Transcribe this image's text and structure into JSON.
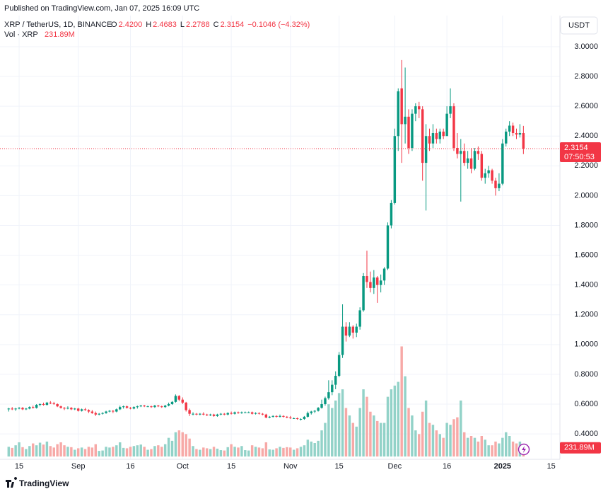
{
  "header": {
    "published": "Published on TradingView.com, Jan 07, 2025 16:09 UTC",
    "symbol": "XRP / TetherUS, 1D, BINANCE",
    "ohlc": [
      {
        "key": "O",
        "value": "2.4200"
      },
      {
        "key": "H",
        "value": "2.4683"
      },
      {
        "key": "L",
        "value": "2.2788"
      },
      {
        "key": "C",
        "value": "2.3154"
      }
    ],
    "change": "−0.1046 (−4.32%)",
    "volume_name": "Vol · XRP",
    "volume_value": "231.89M"
  },
  "currency": "USDT",
  "countdown": "07:50:53",
  "footer": "TradingView",
  "chart_data": {
    "type": "candlestick",
    "up_color": "#089981",
    "down_color": "#f23645",
    "volume_up_color": "#92d2c8",
    "volume_down_color": "#f7a9a7",
    "grid": true,
    "xlim": [
      -2.5,
      158.5
    ],
    "ylim": [
      0.234,
      3.209
    ],
    "volume_ylim": [
      0,
      3300
    ],
    "xticks": [
      {
        "value": 3,
        "label": "15"
      },
      {
        "value": 20,
        "label": "Sep"
      },
      {
        "value": 35,
        "label": "16"
      },
      {
        "value": 50,
        "label": "Oct"
      },
      {
        "value": 64,
        "label": "15"
      },
      {
        "value": 81,
        "label": "Nov"
      },
      {
        "value": 95,
        "label": "15"
      },
      {
        "value": 111,
        "label": "Dec"
      },
      {
        "value": 126,
        "label": "16"
      },
      {
        "value": 142,
        "label": "2025"
      },
      {
        "value": 156,
        "label": "15"
      }
    ],
    "yticks": [
      {
        "value": 0.4,
        "label": "0.4000"
      },
      {
        "value": 0.6,
        "label": "0.6000"
      },
      {
        "value": 0.8,
        "label": "0.8000"
      },
      {
        "value": 1.0,
        "label": "1.0000"
      },
      {
        "value": 1.2,
        "label": "1.2000"
      },
      {
        "value": 1.4,
        "label": "1.4000"
      },
      {
        "value": 1.6,
        "label": "1.6000"
      },
      {
        "value": 1.8,
        "label": "1.8000"
      },
      {
        "value": 2.0,
        "label": "2.0000"
      },
      {
        "value": 2.2,
        "label": "2.2000"
      },
      {
        "value": 2.4,
        "label": "2.4000"
      },
      {
        "value": 2.6,
        "label": "2.6000"
      },
      {
        "value": 2.8,
        "label": "2.8000"
      },
      {
        "value": 3.0,
        "label": "3.0000"
      }
    ],
    "candles": [
      [
        0.565,
        0.575,
        0.55,
        0.57,
        260
      ],
      [
        0.57,
        0.58,
        0.56,
        0.565,
        230
      ],
      [
        0.565,
        0.575,
        0.555,
        0.57,
        300
      ],
      [
        0.57,
        0.58,
        0.565,
        0.575,
        380
      ],
      [
        0.575,
        0.58,
        0.56,
        0.565,
        250
      ],
      [
        0.565,
        0.575,
        0.56,
        0.57,
        200
      ],
      [
        0.57,
        0.585,
        0.565,
        0.58,
        280
      ],
      [
        0.58,
        0.59,
        0.57,
        0.575,
        350
      ],
      [
        0.575,
        0.6,
        0.57,
        0.595,
        300
      ],
      [
        0.595,
        0.605,
        0.585,
        0.6,
        370
      ],
      [
        0.6,
        0.61,
        0.59,
        0.595,
        320
      ],
      [
        0.595,
        0.615,
        0.59,
        0.61,
        400
      ],
      [
        0.61,
        0.62,
        0.6,
        0.605,
        280
      ],
      [
        0.605,
        0.615,
        0.595,
        0.6,
        240
      ],
      [
        0.6,
        0.605,
        0.58,
        0.585,
        330
      ],
      [
        0.585,
        0.59,
        0.57,
        0.575,
        380
      ],
      [
        0.575,
        0.58,
        0.56,
        0.57,
        300
      ],
      [
        0.57,
        0.585,
        0.565,
        0.575,
        260
      ],
      [
        0.575,
        0.58,
        0.56,
        0.565,
        250
      ],
      [
        0.565,
        0.575,
        0.56,
        0.57,
        180
      ],
      [
        0.57,
        0.575,
        0.55,
        0.555,
        220
      ],
      [
        0.555,
        0.57,
        0.55,
        0.565,
        240
      ],
      [
        0.565,
        0.575,
        0.555,
        0.56,
        200
      ],
      [
        0.56,
        0.565,
        0.54,
        0.55,
        260
      ],
      [
        0.55,
        0.56,
        0.535,
        0.54,
        240
      ],
      [
        0.54,
        0.55,
        0.52,
        0.53,
        330
      ],
      [
        0.53,
        0.54,
        0.525,
        0.535,
        150
      ],
      [
        0.535,
        0.545,
        0.53,
        0.54,
        160
      ],
      [
        0.54,
        0.555,
        0.535,
        0.55,
        260
      ],
      [
        0.55,
        0.56,
        0.545,
        0.555,
        240
      ],
      [
        0.555,
        0.56,
        0.54,
        0.55,
        260
      ],
      [
        0.55,
        0.57,
        0.545,
        0.565,
        300
      ],
      [
        0.565,
        0.59,
        0.56,
        0.58,
        380
      ],
      [
        0.58,
        0.59,
        0.57,
        0.585,
        230
      ],
      [
        0.585,
        0.59,
        0.57,
        0.575,
        220
      ],
      [
        0.575,
        0.58,
        0.565,
        0.57,
        260
      ],
      [
        0.57,
        0.585,
        0.565,
        0.58,
        280
      ],
      [
        0.58,
        0.59,
        0.57,
        0.585,
        300
      ],
      [
        0.585,
        0.595,
        0.58,
        0.59,
        320
      ],
      [
        0.59,
        0.595,
        0.58,
        0.585,
        260
      ],
      [
        0.585,
        0.59,
        0.58,
        0.585,
        180
      ],
      [
        0.585,
        0.59,
        0.575,
        0.58,
        200
      ],
      [
        0.58,
        0.595,
        0.575,
        0.59,
        280
      ],
      [
        0.59,
        0.595,
        0.58,
        0.585,
        300
      ],
      [
        0.585,
        0.59,
        0.575,
        0.58,
        260
      ],
      [
        0.58,
        0.595,
        0.575,
        0.59,
        330
      ],
      [
        0.59,
        0.61,
        0.585,
        0.6,
        500
      ],
      [
        0.6,
        0.62,
        0.595,
        0.615,
        420
      ],
      [
        0.615,
        0.665,
        0.61,
        0.655,
        650
      ],
      [
        0.655,
        0.66,
        0.62,
        0.63,
        700
      ],
      [
        0.63,
        0.645,
        0.6,
        0.61,
        650
      ],
      [
        0.61,
        0.615,
        0.55,
        0.56,
        600
      ],
      [
        0.56,
        0.57,
        0.52,
        0.535,
        480
      ],
      [
        0.535,
        0.545,
        0.525,
        0.535,
        280
      ],
      [
        0.535,
        0.54,
        0.525,
        0.53,
        200
      ],
      [
        0.53,
        0.54,
        0.525,
        0.535,
        180
      ],
      [
        0.535,
        0.545,
        0.525,
        0.53,
        240
      ],
      [
        0.53,
        0.535,
        0.52,
        0.525,
        220
      ],
      [
        0.525,
        0.535,
        0.52,
        0.53,
        200
      ],
      [
        0.53,
        0.535,
        0.515,
        0.52,
        260
      ],
      [
        0.52,
        0.535,
        0.515,
        0.53,
        210
      ],
      [
        0.53,
        0.54,
        0.525,
        0.535,
        170
      ],
      [
        0.535,
        0.54,
        0.525,
        0.53,
        160
      ],
      [
        0.53,
        0.545,
        0.525,
        0.54,
        250
      ],
      [
        0.54,
        0.55,
        0.53,
        0.535,
        330
      ],
      [
        0.535,
        0.55,
        0.53,
        0.545,
        260
      ],
      [
        0.545,
        0.55,
        0.535,
        0.54,
        240
      ],
      [
        0.54,
        0.55,
        0.535,
        0.545,
        280
      ],
      [
        0.545,
        0.55,
        0.54,
        0.545,
        170
      ],
      [
        0.545,
        0.55,
        0.54,
        0.545,
        160
      ],
      [
        0.545,
        0.55,
        0.53,
        0.535,
        300
      ],
      [
        0.535,
        0.545,
        0.53,
        0.54,
        260
      ],
      [
        0.54,
        0.545,
        0.53,
        0.535,
        240
      ],
      [
        0.535,
        0.54,
        0.525,
        0.53,
        220
      ],
      [
        0.53,
        0.535,
        0.505,
        0.51,
        380
      ],
      [
        0.51,
        0.52,
        0.505,
        0.515,
        190
      ],
      [
        0.515,
        0.525,
        0.51,
        0.52,
        180
      ],
      [
        0.52,
        0.525,
        0.51,
        0.515,
        220
      ],
      [
        0.515,
        0.53,
        0.51,
        0.52,
        260
      ],
      [
        0.52,
        0.525,
        0.51,
        0.515,
        230
      ],
      [
        0.515,
        0.52,
        0.505,
        0.51,
        250
      ],
      [
        0.51,
        0.52,
        0.5,
        0.505,
        240
      ],
      [
        0.505,
        0.51,
        0.5,
        0.505,
        180
      ],
      [
        0.505,
        0.51,
        0.495,
        0.5,
        220
      ],
      [
        0.5,
        0.505,
        0.49,
        0.5,
        260
      ],
      [
        0.5,
        0.52,
        0.495,
        0.515,
        300
      ],
      [
        0.515,
        0.55,
        0.51,
        0.54,
        450
      ],
      [
        0.54,
        0.555,
        0.53,
        0.55,
        400
      ],
      [
        0.55,
        0.56,
        0.54,
        0.555,
        360
      ],
      [
        0.555,
        0.58,
        0.55,
        0.575,
        420
      ],
      [
        0.575,
        0.63,
        0.57,
        0.6,
        700
      ],
      [
        0.6,
        0.65,
        0.59,
        0.64,
        900
      ],
      [
        0.64,
        0.76,
        0.63,
        0.68,
        1400
      ],
      [
        0.68,
        0.76,
        0.66,
        0.73,
        1300
      ],
      [
        0.73,
        0.82,
        0.7,
        0.79,
        1500
      ],
      [
        0.79,
        0.95,
        0.78,
        0.93,
        1700
      ],
      [
        0.93,
        1.27,
        0.91,
        1.12,
        1800
      ],
      [
        1.12,
        1.15,
        1.02,
        1.06,
        1300
      ],
      [
        1.06,
        1.15,
        1.05,
        1.12,
        1100
      ],
      [
        1.12,
        1.13,
        1.04,
        1.08,
        900
      ],
      [
        1.08,
        1.14,
        1.05,
        1.12,
        800
      ],
      [
        1.12,
        1.25,
        1.1,
        1.23,
        1300
      ],
      [
        1.23,
        1.48,
        1.22,
        1.46,
        1800
      ],
      [
        1.46,
        1.63,
        1.38,
        1.42,
        1600
      ],
      [
        1.42,
        1.49,
        1.35,
        1.38,
        1200
      ],
      [
        1.38,
        1.5,
        1.34,
        1.45,
        1100
      ],
      [
        1.45,
        1.46,
        1.28,
        1.4,
        950
      ],
      [
        1.4,
        1.47,
        1.35,
        1.43,
        900
      ],
      [
        1.43,
        1.52,
        1.4,
        1.51,
        900
      ],
      [
        1.51,
        1.82,
        1.5,
        1.8,
        1600
      ],
      [
        1.8,
        1.97,
        1.78,
        1.95,
        1800
      ],
      [
        1.95,
        2.45,
        1.94,
        2.4,
        1900
      ],
      [
        2.4,
        2.72,
        2.3,
        2.7,
        2000
      ],
      [
        2.72,
        2.91,
        2.22,
        2.48,
        2950
      ],
      [
        2.48,
        2.86,
        2.35,
        2.53,
        2150
      ],
      [
        2.53,
        2.58,
        2.28,
        2.32,
        1300
      ],
      [
        2.32,
        2.58,
        2.3,
        2.55,
        1100
      ],
      [
        2.55,
        2.62,
        2.5,
        2.6,
        700
      ],
      [
        2.6,
        2.63,
        2.52,
        2.58,
        600
      ],
      [
        2.58,
        2.6,
        2.1,
        2.22,
        1200
      ],
      [
        2.22,
        2.48,
        1.9,
        2.4,
        1500
      ],
      [
        2.4,
        2.45,
        2.3,
        2.35,
        900
      ],
      [
        2.35,
        2.48,
        2.32,
        2.42,
        850
      ],
      [
        2.42,
        2.45,
        2.35,
        2.38,
        700
      ],
      [
        2.38,
        2.45,
        2.35,
        2.43,
        600
      ],
      [
        2.43,
        2.45,
        2.38,
        2.4,
        500
      ],
      [
        2.4,
        2.6,
        2.4,
        2.55,
        900
      ],
      [
        2.55,
        2.72,
        2.52,
        2.6,
        850
      ],
      [
        2.6,
        2.62,
        2.3,
        2.32,
        1000
      ],
      [
        2.32,
        2.42,
        2.25,
        2.28,
        1050
      ],
      [
        2.28,
        2.38,
        1.96,
        2.3,
        1500
      ],
      [
        2.3,
        2.35,
        2.2,
        2.22,
        650
      ],
      [
        2.22,
        2.3,
        2.18,
        2.25,
        500
      ],
      [
        2.25,
        2.32,
        2.15,
        2.18,
        550
      ],
      [
        2.18,
        2.32,
        2.17,
        2.3,
        500
      ],
      [
        2.3,
        2.33,
        2.24,
        2.28,
        400
      ],
      [
        2.28,
        2.3,
        2.1,
        2.12,
        550
      ],
      [
        2.12,
        2.18,
        2.08,
        2.15,
        450
      ],
      [
        2.15,
        2.2,
        2.12,
        2.17,
        300
      ],
      [
        2.17,
        2.18,
        2.08,
        2.1,
        300
      ],
      [
        2.1,
        2.12,
        2.0,
        2.05,
        400
      ],
      [
        2.05,
        2.15,
        2.03,
        2.08,
        350
      ],
      [
        2.08,
        2.38,
        2.07,
        2.35,
        500
      ],
      [
        2.35,
        2.45,
        2.33,
        2.43,
        650
      ],
      [
        2.43,
        2.5,
        2.4,
        2.47,
        550
      ],
      [
        2.47,
        2.49,
        2.4,
        2.42,
        400
      ],
      [
        2.42,
        2.45,
        2.38,
        2.41,
        350
      ],
      [
        2.41,
        2.48,
        2.39,
        2.42,
        400
      ],
      [
        2.42,
        2.4683,
        2.2788,
        2.3154,
        231.89
      ]
    ]
  }
}
